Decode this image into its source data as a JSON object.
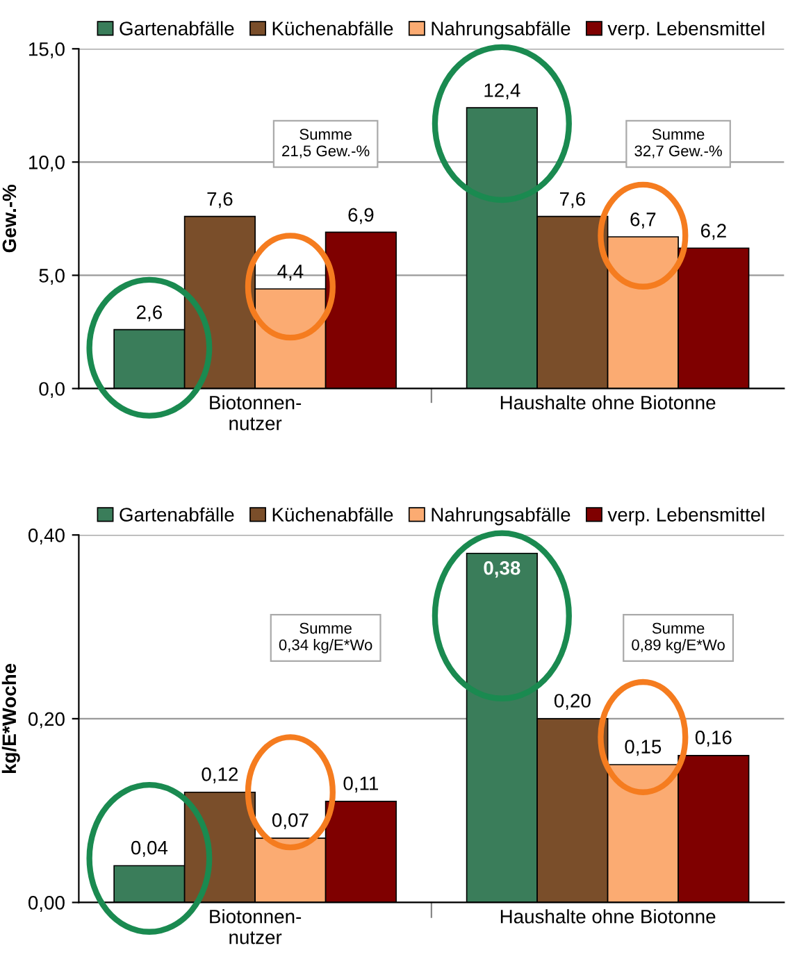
{
  "chart_data": [
    {
      "type": "bar",
      "categories": [
        "Biotonnen-\nnutzer",
        "Haushalte ohne Biotonne"
      ],
      "ylabel": "Gew.-%",
      "ylim": [
        0,
        15
      ],
      "yticks": [
        {
          "value": 0,
          "label": "0,0"
        },
        {
          "value": 5,
          "label": "5,0"
        },
        {
          "value": 10,
          "label": "10,0"
        },
        {
          "value": 15,
          "label": "15,0"
        }
      ],
      "grid": "y",
      "legend": "top",
      "series": [
        {
          "name": "Gartenabfälle",
          "color": "#3a7d5a",
          "values": [
            2.6,
            12.4
          ],
          "value_labels": [
            "2,6",
            "12,4"
          ]
        },
        {
          "name": "Küchenabfälle",
          "color": "#7a4e2a",
          "values": [
            7.6,
            7.6
          ],
          "value_labels": [
            "7,6",
            "7,6"
          ]
        },
        {
          "name": "Nahrungsabfälle",
          "color": "#fbab72",
          "values": [
            4.4,
            6.7
          ],
          "value_labels": [
            "4,4",
            "6,7"
          ]
        },
        {
          "name": "verp. Lebensmittel",
          "color": "#7f0000",
          "values": [
            6.9,
            6.2
          ],
          "value_labels": [
            "6,9",
            "6,2"
          ]
        }
      ],
      "annotations": [
        "Summe\n21,5 Gew.-%",
        "Summe\n32,7 Gew.-%"
      ]
    },
    {
      "type": "bar",
      "categories": [
        "Biotonnen-\nnutzer",
        "Haushalte ohne Biotonne"
      ],
      "ylabel": "kg/E*Woche",
      "ylim": [
        0,
        0.4
      ],
      "yticks": [
        {
          "value": 0,
          "label": "0,00"
        },
        {
          "value": 0.2,
          "label": "0,20"
        },
        {
          "value": 0.4,
          "label": "0,40"
        }
      ],
      "grid": "y",
      "legend": "top",
      "series": [
        {
          "name": "Gartenabfälle",
          "color": "#3a7d5a",
          "values": [
            0.04,
            0.38
          ],
          "value_labels": [
            "0,04",
            "0,38"
          ]
        },
        {
          "name": "Küchenabfälle",
          "color": "#7a4e2a",
          "values": [
            0.12,
            0.2
          ],
          "value_labels": [
            "0,12",
            "0,20"
          ]
        },
        {
          "name": "Nahrungsabfälle",
          "color": "#fbab72",
          "values": [
            0.07,
            0.15
          ],
          "value_labels": [
            "0,07",
            "0,15"
          ]
        },
        {
          "name": "verp. Lebensmittel",
          "color": "#7f0000",
          "values": [
            0.11,
            0.16
          ],
          "value_labels": [
            "0,11",
            "0,16"
          ]
        }
      ],
      "annotations": [
        "Summe\n0,34 kg/E*Wo",
        "Summe\n0,89 kg/E*Wo"
      ]
    }
  ]
}
